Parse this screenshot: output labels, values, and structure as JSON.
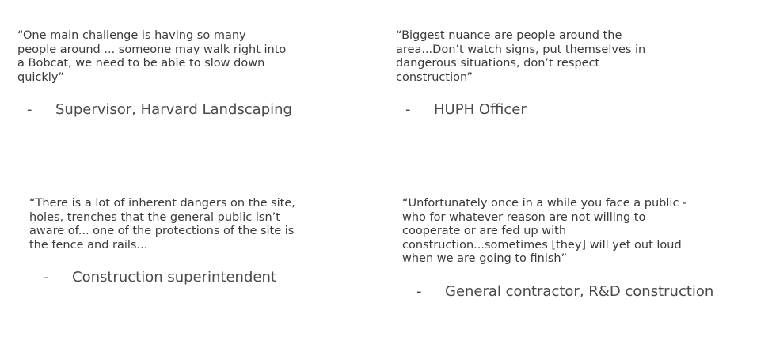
{
  "quotes": [
    {
      "text": "“One main challenge is having so many\npeople around ... someone may walk right into\na Bobcat, we need to be able to slow down\nquickly”",
      "dash": "-",
      "attribution": "Supervisor, Harvard Landscaping"
    },
    {
      "text": "“Biggest nuance are people around the\narea...Don’t watch signs, put themselves in\ndangerous situations, don’t respect\nconstruction”",
      "dash": "-",
      "attribution": "HUPH Officer"
    },
    {
      "text": "“There is a lot of inherent dangers on the site,\nholes, trenches that the general public isn’t\naware of... one of the protections of the site is\nthe fence and rails...",
      "dash": "-",
      "attribution": "Construction superintendent"
    },
    {
      "text": "“Unfortunately once in a while you face a public -\nwho for whatever reason are not willing to\ncooperate or are fed up with\nconstruction...sometimes [they] will yet out loud\nwhen we are going to finish”",
      "dash": "-",
      "attribution": "General contractor, R&D construction"
    }
  ]
}
